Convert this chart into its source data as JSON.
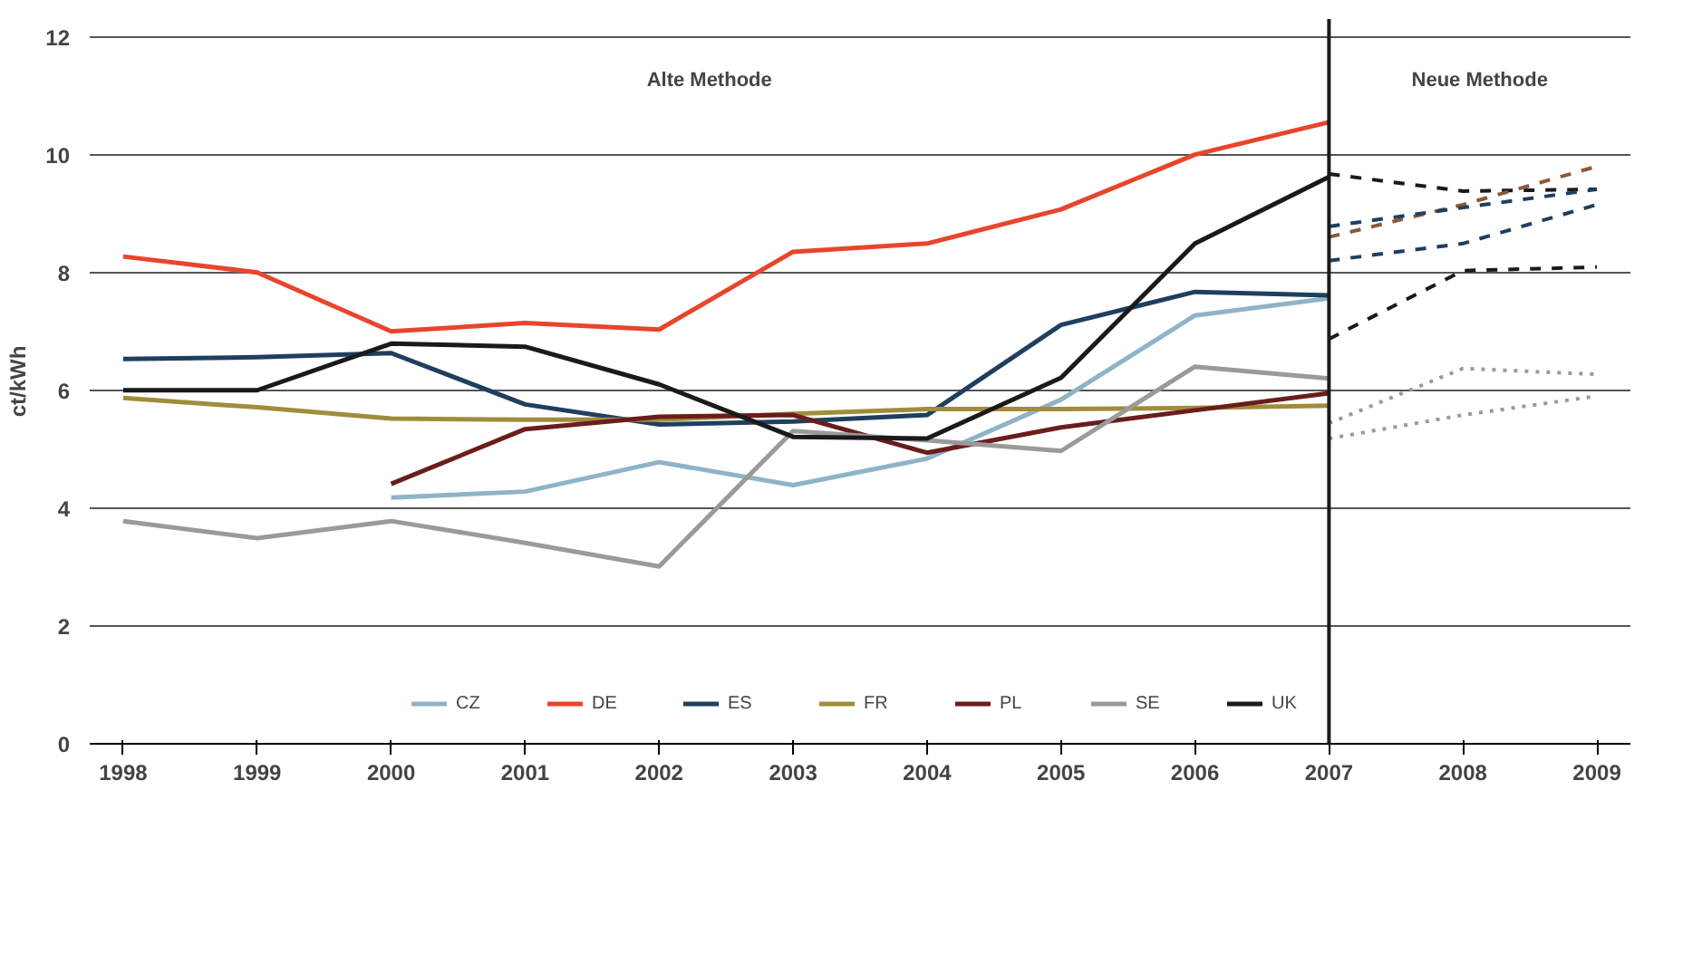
{
  "chart_data": {
    "type": "line",
    "ylabel": "ct/kWh",
    "x": [
      1998,
      1999,
      2000,
      2001,
      2002,
      2003,
      2004,
      2005,
      2006,
      2007
    ],
    "xlim": [
      1997.75,
      2009.25
    ],
    "xticks": [
      1998,
      1999,
      2000,
      2001,
      2002,
      2003,
      2004,
      2005,
      2006,
      2007,
      2008,
      2009
    ],
    "ylim": [
      0,
      12.3
    ],
    "yticks": [
      0,
      2,
      4,
      6,
      8,
      10,
      12
    ],
    "grid": "y",
    "legend": "bottom",
    "marker": "none",
    "line_style": "solid",
    "series": [
      {
        "name": "CZ",
        "color": "#8fb3c8",
        "values": [
          null,
          null,
          4.18,
          4.28,
          4.78,
          4.39,
          4.84,
          5.84,
          7.27,
          7.56
        ]
      },
      {
        "name": "DE",
        "color": "#e8452c",
        "values": [
          8.27,
          8.0,
          7.0,
          7.14,
          7.03,
          8.35,
          8.49,
          9.07,
          10.0,
          10.55
        ]
      },
      {
        "name": "ES",
        "color": "#1f3f5f",
        "values": [
          6.53,
          6.56,
          6.63,
          5.76,
          5.42,
          5.47,
          5.58,
          7.11,
          7.67,
          7.61
        ]
      },
      {
        "name": "FR",
        "color": "#a08c3a",
        "values": [
          5.87,
          5.71,
          5.52,
          5.5,
          5.5,
          5.6,
          5.68,
          5.68,
          5.7,
          5.74
        ]
      },
      {
        "name": "PL",
        "color": "#6b1c1c",
        "values": [
          null,
          null,
          4.41,
          5.34,
          5.55,
          5.58,
          4.94,
          5.37,
          5.66,
          5.95
        ]
      },
      {
        "name": "SE",
        "color": "#9a9a9a",
        "values": [
          3.78,
          3.49,
          3.78,
          3.41,
          3.01,
          5.31,
          5.15,
          4.97,
          6.4,
          6.2
        ]
      },
      {
        "name": "UK",
        "color": "#1a1a1a",
        "values": [
          6.0,
          6.0,
          6.79,
          6.74,
          6.1,
          5.21,
          5.18,
          6.21,
          8.49,
          9.62
        ]
      },
      {
        "color": "#1a1a1a",
        "line_style": "dashed",
        "x": [
          2007,
          2008,
          2009
        ],
        "values": [
          9.67,
          9.38,
          9.41
        ]
      },
      {
        "color": "#8a5a3a",
        "line_style": "dashed",
        "x": [
          2007,
          2008,
          2009
        ],
        "values": [
          8.6,
          9.15,
          9.8
        ]
      },
      {
        "color": "#1f3f5f",
        "line_style": "dashed",
        "x": [
          2007,
          2008,
          2009
        ],
        "values": [
          8.78,
          9.1,
          9.41
        ]
      },
      {
        "color": "#1f3f5f",
        "line_style": "dashed",
        "x": [
          2007,
          2008,
          2009
        ],
        "values": [
          8.2,
          8.49,
          9.15
        ]
      },
      {
        "color": "#1a1a1a",
        "line_style": "dashed",
        "x": [
          2007,
          2008,
          2009
        ],
        "values": [
          6.87,
          8.03,
          8.09
        ]
      },
      {
        "color": "#9a9a9a",
        "line_style": "dotted",
        "x": [
          2007,
          2008,
          2009
        ],
        "values": [
          5.44,
          6.37,
          6.27
        ]
      },
      {
        "color": "#9a9a9a",
        "line_style": "dotted",
        "x": [
          2007,
          2008,
          2009
        ],
        "values": [
          5.18,
          5.58,
          5.9
        ]
      }
    ],
    "ref_lines": [
      {
        "axis": "x",
        "value": 2007,
        "color": "#1a1a1a"
      }
    ],
    "annotations": [
      "Alte Methode",
      "Neue Methode"
    ]
  }
}
